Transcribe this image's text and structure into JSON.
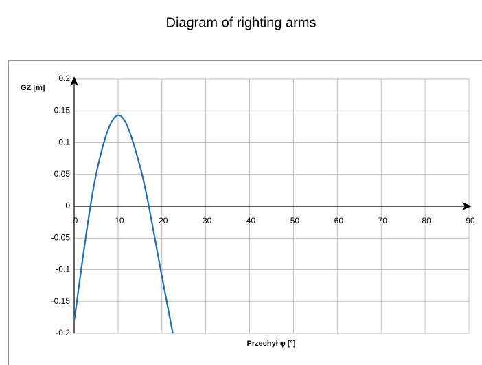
{
  "chart_data": {
    "type": "line",
    "title": "Diagram of righting arms",
    "x_label": "Przechył φ [°]",
    "y_label": "GZ [m]",
    "x": [
      0,
      5,
      10,
      15,
      20,
      22.5
    ],
    "series": [
      {
        "name": "GZ",
        "color": "#1f6fb5",
        "values": [
          -0.18,
          0.05,
          0.143,
          0.063,
          -0.11,
          -0.2
        ]
      }
    ],
    "xlim": [
      0,
      90
    ],
    "xticks": [
      0,
      10,
      20,
      30,
      40,
      50,
      60,
      70,
      80,
      90
    ],
    "ylim": [
      -0.2,
      0.2
    ],
    "yticks": [
      -0.2,
      -0.15,
      -0.1,
      -0.05,
      0,
      0.05,
      0.1,
      0.15,
      0.2
    ],
    "grid": true
  }
}
